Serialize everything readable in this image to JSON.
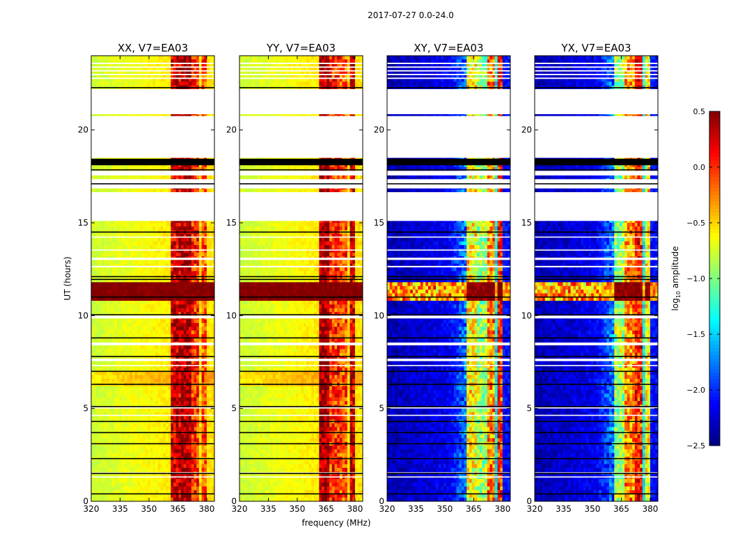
{
  "chart_data": {
    "type": "heatmap",
    "suptitle": "2017-07-27 0.0-24.0",
    "xlabel": "frequency (MHz)",
    "ylabel": "UT (hours)",
    "xlim": [
      320,
      384
    ],
    "ylim": [
      0,
      24
    ],
    "xticks": [
      320,
      335,
      350,
      365,
      380
    ],
    "yticks": [
      0,
      5,
      10,
      15,
      20
    ],
    "colormap": "jet",
    "colorbar": {
      "label_main": "log",
      "label_sub": "10",
      "label_rest": " amplitude",
      "range": [
        -2.5,
        0.5
      ],
      "ticks": [
        "0.5",
        "0.0",
        "−0.5",
        "−1.0",
        "−1.5",
        "−2.0",
        "−2.5"
      ],
      "tick_values": [
        0.5,
        0.0,
        -0.5,
        -1.0,
        -1.5,
        -2.0,
        -2.5
      ]
    },
    "panels": [
      {
        "title": "XX, V7=EA03",
        "kind": "parallel"
      },
      {
        "title": "YY, V7=EA03",
        "kind": "parallel"
      },
      {
        "title": "XY, V7=EA03",
        "kind": "cross"
      },
      {
        "title": "YX, V7=EA03",
        "kind": "cross"
      }
    ],
    "model": {
      "parallel": {
        "base_low": -0.78,
        "base_high": -0.55,
        "rfi_levels": [
          0.25,
          0.4,
          0.0,
          -0.1
        ],
        "gap_level": -0.55,
        "noise": 0.08
      },
      "cross": {
        "base_low": -2.35,
        "base_high": -2.1,
        "rfi_levels": [
          -0.3,
          0.0,
          -0.6,
          -0.9
        ],
        "gap_level": -1.4,
        "noise": 0.15
      },
      "rfi_subbands_mhz": [
        [
          361.5,
          366.5
        ],
        [
          367.2,
          371.6
        ],
        [
          372.3,
          376.6
        ],
        [
          377.3,
          380.0
        ]
      ],
      "storm_hours": [
        10.9,
        11.9
      ],
      "storm_level_parallel": 0.5,
      "storm_level_cross": -0.35,
      "flagged_hours": [
        [
          23.55,
          23.62
        ],
        [
          23.35,
          23.42
        ],
        [
          23.15,
          23.22
        ],
        [
          22.95,
          23.02
        ],
        [
          22.75,
          22.82
        ],
        [
          20.85,
          22.2
        ],
        [
          18.5,
          20.75
        ],
        [
          17.55,
          17.8
        ],
        [
          16.85,
          17.35
        ],
        [
          15.1,
          16.65
        ],
        [
          13.0,
          13.12
        ],
        [
          12.6,
          12.68
        ],
        [
          9.85,
          10.0
        ],
        [
          8.4,
          8.55
        ],
        [
          7.55,
          7.68
        ],
        [
          7.28,
          7.34
        ],
        [
          5.0,
          5.06
        ],
        [
          4.6,
          4.66
        ],
        [
          1.5,
          1.56
        ],
        [
          1.28,
          1.34
        ],
        [
          14.2,
          14.26
        ],
        [
          13.5,
          13.56
        ]
      ],
      "black_band_hours": [
        [
          18.1,
          18.45
        ]
      ],
      "black_line_hours": [
        22.28,
        17.85,
        17.1,
        14.5,
        12.1,
        11.95,
        11.0,
        10.05,
        8.8,
        7.8,
        7.0,
        6.3,
        5.1,
        4.3,
        3.7,
        3.1,
        2.3,
        1.5,
        0.4
      ]
    }
  }
}
